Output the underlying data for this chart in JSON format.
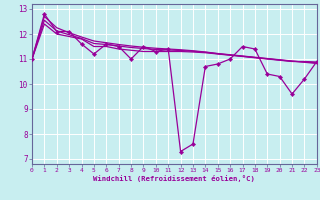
{
  "title": "",
  "xlabel": "Windchill (Refroidissement éolien,°C)",
  "ylabel": "",
  "background_color": "#c8eef0",
  "line_color": "#990099",
  "grid_color": "#ffffff",
  "x": [
    0,
    1,
    2,
    3,
    4,
    5,
    6,
    7,
    8,
    9,
    10,
    11,
    12,
    13,
    14,
    15,
    16,
    17,
    18,
    19,
    20,
    21,
    22,
    23
  ],
  "y_main": [
    11.0,
    12.8,
    12.1,
    12.1,
    11.6,
    11.2,
    11.6,
    11.5,
    11.0,
    11.5,
    11.3,
    11.4,
    7.3,
    7.6,
    10.7,
    10.8,
    11.0,
    11.5,
    11.4,
    10.4,
    10.3,
    9.6,
    10.2,
    10.9
  ],
  "y_trend1": [
    11.0,
    12.4,
    12.0,
    11.9,
    11.8,
    11.5,
    11.5,
    11.4,
    11.35,
    11.3,
    11.3,
    11.3,
    11.3,
    11.28,
    11.25,
    11.2,
    11.15,
    11.1,
    11.05,
    11.0,
    10.95,
    10.9,
    10.9,
    10.88
  ],
  "y_trend2": [
    11.0,
    12.7,
    12.25,
    12.05,
    11.88,
    11.72,
    11.65,
    11.58,
    11.52,
    11.47,
    11.43,
    11.4,
    11.37,
    11.33,
    11.28,
    11.22,
    11.17,
    11.12,
    11.07,
    11.02,
    10.97,
    10.92,
    10.87,
    10.82
  ],
  "y_trend3": [
    11.0,
    12.55,
    12.12,
    11.97,
    11.82,
    11.62,
    11.58,
    11.52,
    11.46,
    11.42,
    11.38,
    11.36,
    11.34,
    11.31,
    11.27,
    11.21,
    11.16,
    11.11,
    11.06,
    11.01,
    10.96,
    10.91,
    10.88,
    10.85
  ],
  "xlim": [
    0,
    23
  ],
  "ylim": [
    6.8,
    13.2
  ],
  "yticks": [
    7,
    8,
    9,
    10,
    11,
    12,
    13
  ],
  "xticks": [
    0,
    1,
    2,
    3,
    4,
    5,
    6,
    7,
    8,
    9,
    10,
    11,
    12,
    13,
    14,
    15,
    16,
    17,
    18,
    19,
    20,
    21,
    22,
    23
  ],
  "spine_color": "#666699",
  "tick_color": "#666699",
  "xlabel_color": "#660066"
}
